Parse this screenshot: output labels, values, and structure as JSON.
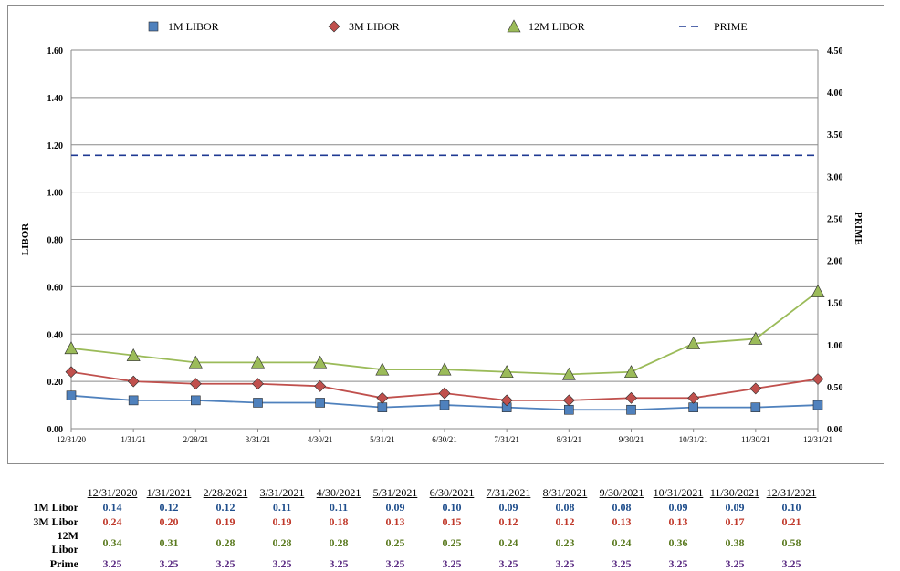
{
  "chart_data": {
    "type": "line",
    "legend": [
      "1M LIBOR",
      "3M LIBOR",
      "12M LIBOR",
      "PRIME"
    ],
    "legend_position": "top",
    "ylabel": "LIBOR",
    "y2label": "PRIME",
    "ylim": [
      0,
      1.6
    ],
    "y2lim": [
      0,
      4.5
    ],
    "y_ticks": [
      "0.00",
      "0.20",
      "0.40",
      "0.60",
      "0.80",
      "1.00",
      "1.20",
      "1.40",
      "1.60"
    ],
    "y2_ticks": [
      "0.00",
      "0.50",
      "1.00",
      "1.50",
      "2.00",
      "2.50",
      "3.00",
      "3.50",
      "4.00",
      "4.50"
    ],
    "x_ticks": [
      "12/31/20",
      "1/31/21",
      "2/28/21",
      "3/31/21",
      "4/30/21",
      "5/31/21",
      "6/30/21",
      "7/31/21",
      "8/31/21",
      "9/30/21",
      "10/31/21",
      "11/30/21",
      "12/31/21"
    ],
    "grid": true,
    "colors": {
      "1M LIBOR": "#4f81bd",
      "3M LIBOR": "#c0504d",
      "12M LIBOR": "#9bbb59",
      "PRIME": "#1f3a93"
    },
    "series": [
      {
        "name": "1M LIBOR",
        "marker": "square",
        "values": [
          0.14,
          0.12,
          0.12,
          0.11,
          0.11,
          0.09,
          0.1,
          0.09,
          0.08,
          0.08,
          0.09,
          0.09,
          0.1
        ]
      },
      {
        "name": "3M LIBOR",
        "marker": "diamond",
        "values": [
          0.24,
          0.2,
          0.19,
          0.19,
          0.18,
          0.13,
          0.15,
          0.12,
          0.12,
          0.13,
          0.13,
          0.17,
          0.21
        ]
      },
      {
        "name": "12M LIBOR",
        "marker": "triangle",
        "values": [
          0.34,
          0.31,
          0.28,
          0.28,
          0.28,
          0.25,
          0.25,
          0.24,
          0.23,
          0.24,
          0.36,
          0.38,
          0.58
        ]
      },
      {
        "name": "PRIME",
        "axis": "right",
        "style": "dashed",
        "values": [
          3.25,
          3.25,
          3.25,
          3.25,
          3.25,
          3.25,
          3.25,
          3.25,
          3.25,
          3.25,
          3.25,
          3.25,
          3.25
        ]
      }
    ]
  },
  "table": {
    "headers": [
      "12/31/2020",
      "1/31/2021",
      "2/28/2021",
      "3/31/2021",
      "4/30/2021",
      "5/31/2021",
      "6/30/2021",
      "7/31/2021",
      "8/31/2021",
      "9/30/2021",
      "10/31/2021",
      "11/30/2021",
      "12/31/2021"
    ],
    "rows": [
      {
        "label": "1M Libor",
        "color": "#1f4e8c",
        "values": [
          "0.14",
          "0.12",
          "0.12",
          "0.11",
          "0.11",
          "0.09",
          "0.10",
          "0.09",
          "0.08",
          "0.08",
          "0.09",
          "0.09",
          "0.10"
        ]
      },
      {
        "label": "3M Libor",
        "color": "#c0392b",
        "values": [
          "0.24",
          "0.20",
          "0.19",
          "0.19",
          "0.18",
          "0.13",
          "0.15",
          "0.12",
          "0.12",
          "0.13",
          "0.13",
          "0.17",
          "0.21"
        ]
      },
      {
        "label": "12M Libor",
        "color": "#5a7a1f",
        "values": [
          "0.34",
          "0.31",
          "0.28",
          "0.28",
          "0.28",
          "0.25",
          "0.25",
          "0.24",
          "0.23",
          "0.24",
          "0.36",
          "0.38",
          "0.58"
        ]
      },
      {
        "label": "Prime",
        "color": "#5b2c83",
        "values": [
          "3.25",
          "3.25",
          "3.25",
          "3.25",
          "3.25",
          "3.25",
          "3.25",
          "3.25",
          "3.25",
          "3.25",
          "3.25",
          "3.25",
          "3.25"
        ]
      }
    ]
  }
}
